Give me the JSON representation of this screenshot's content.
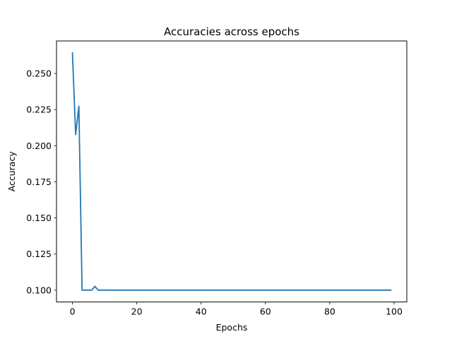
{
  "chart_data": {
    "type": "line",
    "title": "Accuracies across epochs",
    "xlabel": "Epochs",
    "ylabel": "Accuracy",
    "xlim": [
      -4.95,
      103.95
    ],
    "ylim": [
      0.0918,
      0.2725
    ],
    "xticks": [
      0,
      20,
      40,
      60,
      80,
      100
    ],
    "xtick_labels": [
      "0",
      "20",
      "40",
      "60",
      "80",
      "100"
    ],
    "yticks": [
      0.1,
      0.125,
      0.15,
      0.175,
      0.2,
      0.225,
      0.25
    ],
    "ytick_labels": [
      "0.100",
      "0.125",
      "0.150",
      "0.175",
      "0.200",
      "0.225",
      "0.250"
    ],
    "grid": false,
    "legend": "none",
    "series": [
      {
        "color": "#1f77b4",
        "x_start": 0,
        "x_step": 1,
        "values": [
          0.2643,
          0.2077,
          0.2273,
          0.1,
          0.1,
          0.1,
          0.1,
          0.1026,
          0.1,
          0.1,
          0.1,
          0.1,
          0.1,
          0.1,
          0.1,
          0.1,
          0.1,
          0.1,
          0.1,
          0.1,
          0.1,
          0.1,
          0.1,
          0.1,
          0.1,
          0.1,
          0.1,
          0.1,
          0.1,
          0.1,
          0.1,
          0.1,
          0.1,
          0.1,
          0.1,
          0.1,
          0.1,
          0.1,
          0.1,
          0.1,
          0.1,
          0.1,
          0.1,
          0.1,
          0.1,
          0.1,
          0.1,
          0.1,
          0.1,
          0.1,
          0.1,
          0.1,
          0.1,
          0.1,
          0.1,
          0.1,
          0.1,
          0.1,
          0.1,
          0.1,
          0.1,
          0.1,
          0.1,
          0.1,
          0.1,
          0.1,
          0.1,
          0.1,
          0.1,
          0.1,
          0.1,
          0.1,
          0.1,
          0.1,
          0.1,
          0.1,
          0.1,
          0.1,
          0.1,
          0.1,
          0.1,
          0.1,
          0.1,
          0.1,
          0.1,
          0.1,
          0.1,
          0.1,
          0.1,
          0.1,
          0.1,
          0.1,
          0.1,
          0.1,
          0.1,
          0.1,
          0.1,
          0.1,
          0.1,
          0.1
        ]
      }
    ]
  }
}
